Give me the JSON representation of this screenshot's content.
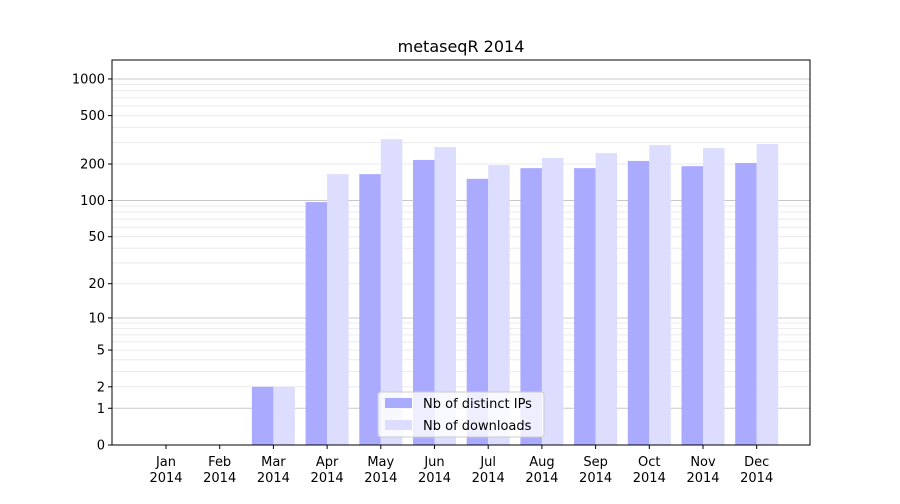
{
  "chart_data": {
    "type": "bar",
    "title": "metaseqR 2014",
    "xlabel": "",
    "ylabel": "",
    "yscale": "log(1+x)",
    "ylim": [
      0,
      1300
    ],
    "yticks": [
      0,
      1,
      2,
      5,
      10,
      20,
      50,
      100,
      200,
      500,
      1000
    ],
    "ytick_labels": [
      "0",
      "1",
      "2",
      "5",
      "10",
      "20",
      "50",
      "100",
      "200",
      "500",
      "1000"
    ],
    "categories": [
      [
        "Jan",
        "2014"
      ],
      [
        "Feb",
        "2014"
      ],
      [
        "Mar",
        "2014"
      ],
      [
        "Apr",
        "2014"
      ],
      [
        "May",
        "2014"
      ],
      [
        "Jun",
        "2014"
      ],
      [
        "Jul",
        "2014"
      ],
      [
        "Aug",
        "2014"
      ],
      [
        "Sep",
        "2014"
      ],
      [
        "Oct",
        "2014"
      ],
      [
        "Nov",
        "2014"
      ],
      [
        "Dec",
        "2014"
      ]
    ],
    "series": [
      {
        "name": "Nb of distinct IPs",
        "color": "#aaaaff",
        "values": [
          0,
          0,
          2,
          97,
          165,
          216,
          151,
          185,
          185,
          212,
          192,
          204
        ]
      },
      {
        "name": "Nb of downloads",
        "color": "#ddddff",
        "values": [
          0,
          0,
          2,
          165,
          320,
          276,
          196,
          224,
          246,
          287,
          271,
          292
        ]
      }
    ],
    "grid": true,
    "legend_position": "bottom-center"
  }
}
